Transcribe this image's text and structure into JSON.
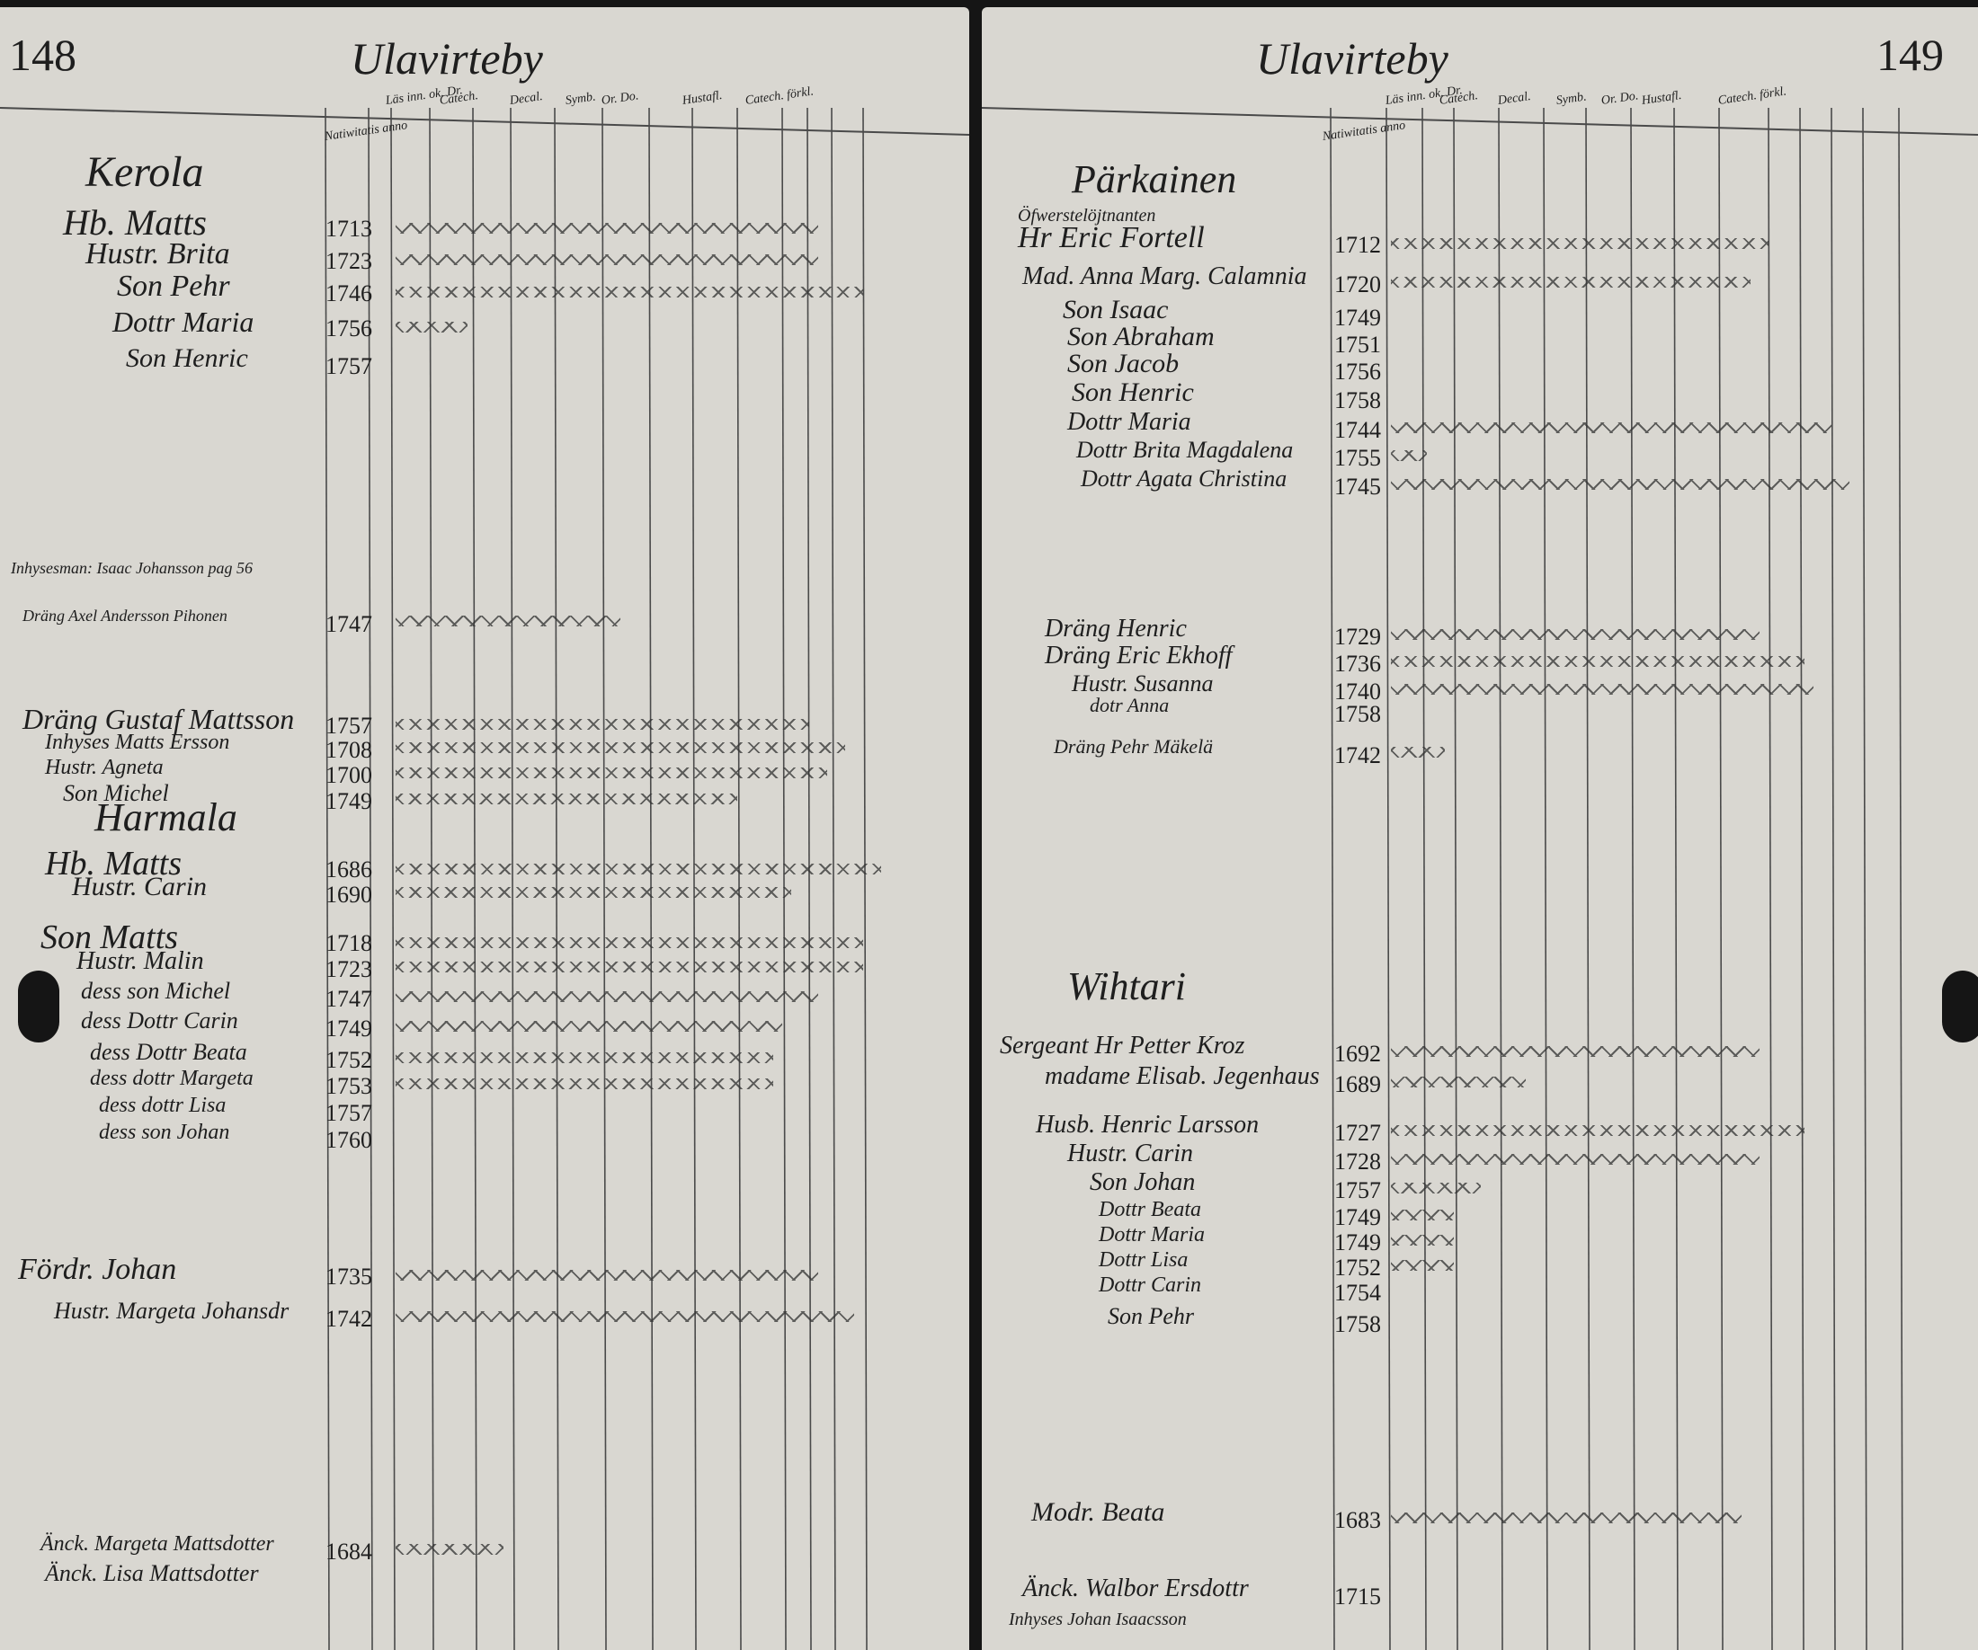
{
  "left_page": {
    "page_number": "148",
    "title": "Ulavirteby",
    "column_headers": [
      "Läs inn. ok. Dr.",
      "Catech.",
      "Decal.",
      "Symb.",
      "Or. Do.",
      "Hustafl.",
      "Catech. förkl.",
      "Natiwitatis anno"
    ],
    "entries": [
      {
        "label": "Kerola"
      },
      {
        "label": "Hb. Matts",
        "year": "1713"
      },
      {
        "label": "Hustr. Brita",
        "year": "1723"
      },
      {
        "label": "Son Pehr",
        "year": "1746"
      },
      {
        "label": "Dottr Maria",
        "year": "1756"
      },
      {
        "label": "Son Henric",
        "year": "1757"
      },
      {
        "label": "Inhysesman: Isaac Johansson pag 56"
      },
      {
        "label": "Dräng Axel Andersson Pihonen",
        "year": "1747"
      },
      {
        "label": "Dräng Gustaf Mattsson",
        "year": "1757"
      },
      {
        "label": "Inhyses Matts Ersson",
        "year": "1708"
      },
      {
        "label": "Hustr. Agneta",
        "year": "1700"
      },
      {
        "label": "Son Michel",
        "year": "1749"
      },
      {
        "label": "Harmala"
      },
      {
        "label": "Hb. Matts",
        "year": "1686"
      },
      {
        "label": "Hustr. Carin",
        "year": "1690"
      },
      {
        "label": "Son Matts",
        "year": "1718"
      },
      {
        "label": "Hustr. Malin",
        "year": "1723"
      },
      {
        "label": "dess son Michel",
        "year": "1747"
      },
      {
        "label": "dess Dottr Carin",
        "year": "1749"
      },
      {
        "label": "dess Dottr Beata",
        "year": "1752"
      },
      {
        "label": "dess dottr Margeta",
        "year": "1753"
      },
      {
        "label": "dess dottr Lisa",
        "year": "1757"
      },
      {
        "label": "dess son Johan",
        "year": "1760"
      },
      {
        "label": "Fördr. Johan",
        "year": "1735"
      },
      {
        "label": "Hustr. Margeta Johansdr",
        "year": "1742"
      },
      {
        "label": "Änck. Margeta Mattsdotter",
        "year": "1684"
      },
      {
        "label": "Änck. Lisa Mattsdotter"
      }
    ]
  },
  "right_page": {
    "page_number": "149",
    "title": "Ulavirteby",
    "column_headers": [
      "Läs inn. ok. Dr.",
      "Catech.",
      "Decal.",
      "Symb.",
      "Or. Do.",
      "Hustafl.",
      "Catech. förkl.",
      "Natiwitatis anno"
    ],
    "entries": [
      {
        "label": "Pärkainen"
      },
      {
        "label": "Öfwerstelöjtnanten"
      },
      {
        "label": "Hr Eric Fortell",
        "year": "1712"
      },
      {
        "label": "Mad. Anna Marg. Calamnia",
        "year": "1720"
      },
      {
        "label": "Son Isaac",
        "year": "1749"
      },
      {
        "label": "Son Abraham",
        "year": "1751"
      },
      {
        "label": "Son Jacob",
        "year": "1756"
      },
      {
        "label": "Son Henric",
        "year": "1758"
      },
      {
        "label": "Dottr Maria",
        "year": "1744"
      },
      {
        "label": "Dottr Brita Magdalena",
        "year": "1755"
      },
      {
        "label": "Dottr Agata Christina",
        "year": "1745"
      },
      {
        "label": "Dräng Henric",
        "year": "1729"
      },
      {
        "label": "Dräng Eric Ekhoff",
        "year": "1736"
      },
      {
        "label": "Hustr. Susanna",
        "year": "1740"
      },
      {
        "label": "dotr Anna",
        "year": "1758"
      },
      {
        "label": "Dräng Pehr Mäkelä",
        "year": "1742"
      },
      {
        "label": "Wihtari"
      },
      {
        "label": "Sergeant Hr Petter Kroz",
        "year": "1692"
      },
      {
        "label": "madame Elisab. Jegenhaus",
        "year": "1689"
      },
      {
        "label": "Husb. Henric Larsson",
        "year": "1727"
      },
      {
        "label": "Hustr. Carin",
        "year": "1728"
      },
      {
        "label": "Son Johan",
        "year": "1757"
      },
      {
        "label": "Dottr Beata",
        "year": "1749"
      },
      {
        "label": "Dottr Maria",
        "year": "1749"
      },
      {
        "label": "Dottr Lisa",
        "year": "1752"
      },
      {
        "label": "Dottr Carin",
        "year": "1754"
      },
      {
        "label": "Son Pehr",
        "year": "1758"
      },
      {
        "label": "Modr. Beata",
        "year": "1683"
      },
      {
        "label": "Änck. Walbor Ersdottr",
        "year": "1715"
      },
      {
        "label": "Inhyses Johan Isaacsson"
      }
    ]
  }
}
